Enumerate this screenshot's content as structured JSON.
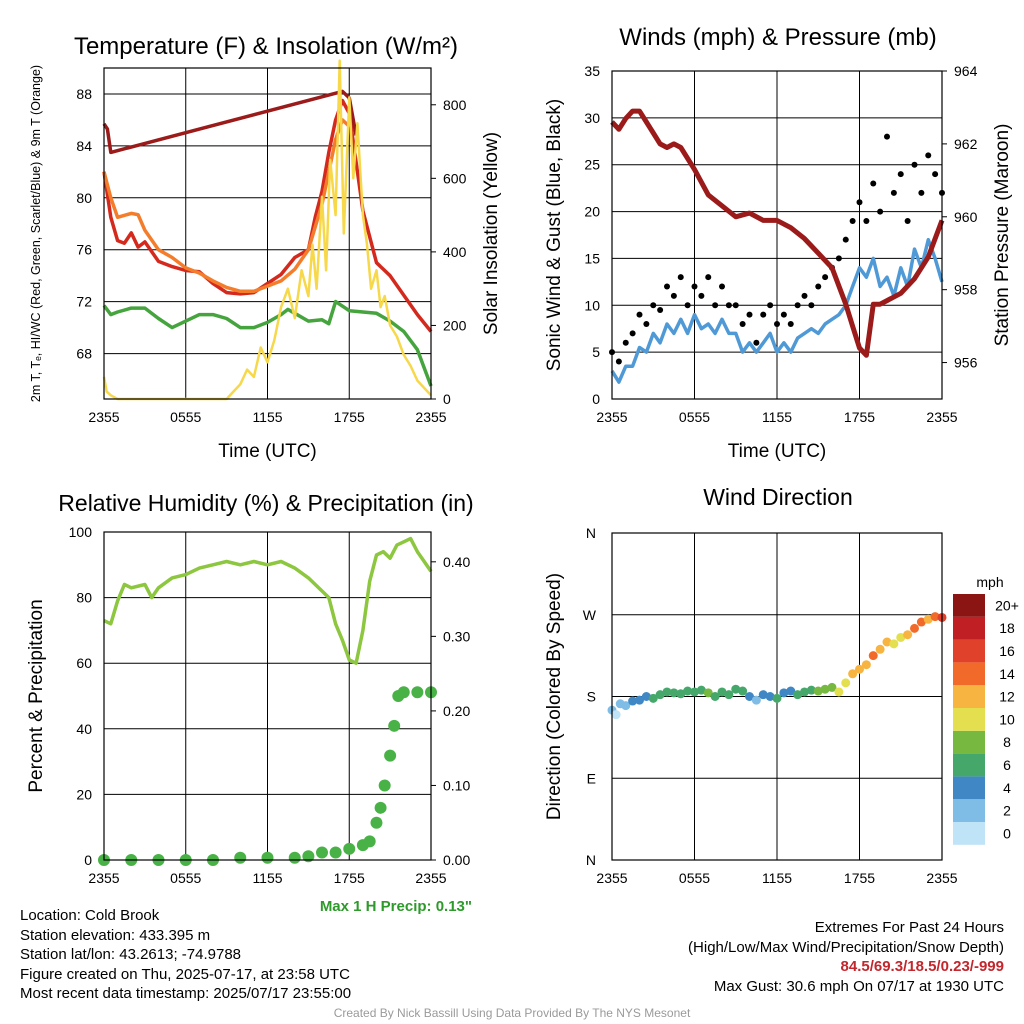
{
  "chart_data": [
    {
      "type": "line",
      "title": "Temperature (F) & Insolation (W/m²)",
      "xlabel": "Time (UTC)",
      "ylabel": "2m T, Tₑ, HI/WC (Red, Green, Scarlet/Blue) & 9m T (Orange)",
      "y2label": "Solar Insolation (Yellow)",
      "x_ticks": [
        "2355",
        "0555",
        "1155",
        "1755",
        "2355"
      ],
      "ylim": [
        64.5,
        90
      ],
      "y_ticks": [
        68,
        72,
        76,
        80,
        84,
        88
      ],
      "y2lim": [
        0,
        900
      ],
      "y2_ticks": [
        0,
        200,
        400,
        600,
        800
      ],
      "series": [
        {
          "name": "2m T",
          "color": "#d42a1e",
          "axis": "left",
          "x": [
            0,
            0.5,
            1,
            1.5,
            2,
            2.5,
            3,
            4,
            5,
            6,
            7,
            8,
            9,
            10,
            11,
            12,
            13,
            14,
            15,
            15.5,
            16,
            16.5,
            17,
            17.5,
            18,
            19,
            20,
            21,
            22,
            23,
            24
          ],
          "y": [
            82,
            78.5,
            76.7,
            76.5,
            77.3,
            76.2,
            76.6,
            75.1,
            74.7,
            74.4,
            74.3,
            73.4,
            72.7,
            72.6,
            72.7,
            73.4,
            74.1,
            75.4,
            76,
            78.5,
            80.5,
            83.5,
            86,
            87.5,
            86.5,
            79,
            75,
            74,
            72.5,
            71,
            69.7
          ]
        },
        {
          "name": "9m T",
          "color": "#f47d2c",
          "axis": "left",
          "x": [
            0,
            0.5,
            1,
            2,
            2.5,
            3,
            4,
            5,
            6,
            7,
            8,
            9,
            10,
            11,
            12,
            13,
            14,
            15,
            16,
            17,
            17.5,
            18
          ],
          "y": [
            82,
            80,
            78.5,
            78.8,
            78.7,
            77.5,
            76,
            75.4,
            74.6,
            74.2,
            73.6,
            73.1,
            72.8,
            72.8,
            73.2,
            73.6,
            74.5,
            76,
            79.5,
            84.5,
            86,
            85.5
          ]
        },
        {
          "name": "Td",
          "color": "#45a43d",
          "axis": "left",
          "x": [
            0,
            0.5,
            1,
            2,
            3,
            4,
            5,
            6,
            7,
            8,
            9,
            10,
            11,
            12,
            13,
            13.5,
            14,
            15,
            16,
            16.5,
            17,
            18,
            19,
            20,
            21,
            22,
            23,
            24
          ],
          "y": [
            71.7,
            71,
            71.2,
            71.5,
            71.5,
            70.7,
            70,
            70.5,
            71,
            71,
            70.7,
            70,
            70,
            70.4,
            71,
            71.4,
            71.1,
            70.5,
            70.6,
            70.3,
            72,
            71.3,
            71.2,
            71.1,
            70.5,
            69.7,
            68.3,
            65.5
          ]
        },
        {
          "name": "HI/WC",
          "color": "#9b1b1b",
          "axis": "left",
          "x": [
            0,
            0.25,
            0.5,
            17.5,
            18,
            18.5
          ],
          "y": [
            85.7,
            85.3,
            83.5,
            88.2,
            87.7,
            84.8
          ]
        },
        {
          "name": "Solar Insolation",
          "color": "#f6d84a",
          "axis": "right",
          "x": [
            0,
            0.2,
            0.5,
            1,
            4,
            8,
            9,
            9.5,
            10,
            10.5,
            11,
            11.5,
            12,
            12.5,
            13,
            13.5,
            14,
            14.5,
            15,
            15.3,
            15.6,
            16,
            16.3,
            16.6,
            17,
            17.3,
            17.6,
            18,
            18.3,
            18.6,
            19,
            19.3,
            19.6,
            20,
            20.3,
            20.6,
            21,
            21.5,
            22,
            22.5,
            23,
            23.5,
            24
          ],
          "y": [
            60,
            20,
            10,
            0,
            0,
            0,
            0,
            20,
            40,
            80,
            60,
            140,
            100,
            160,
            250,
            300,
            220,
            350,
            280,
            420,
            300,
            550,
            350,
            650,
            500,
            920,
            450,
            820,
            600,
            750,
            500,
            420,
            300,
            350,
            250,
            280,
            200,
            170,
            120,
            90,
            50,
            30,
            10
          ]
        }
      ]
    },
    {
      "type": "line",
      "title": "Winds (mph) & Pressure (mb)",
      "xlabel": "Time (UTC)",
      "ylabel": "Sonic Wind & Gust (Blue, Black)",
      "y2label": "Station Pressure (Maroon)",
      "x_ticks": [
        "2355",
        "0555",
        "1155",
        "1755",
        "2355"
      ],
      "ylim": [
        0,
        35
      ],
      "y_ticks": [
        0,
        5,
        10,
        15,
        20,
        25,
        30,
        35
      ],
      "y2lim": [
        955,
        964
      ],
      "y2_ticks": [
        956,
        958,
        960,
        962,
        964
      ],
      "series": [
        {
          "name": "Sonic Wind",
          "color": "#4f9ad6",
          "axis": "left",
          "x": [
            0,
            0.5,
            1,
            1.5,
            2,
            2.5,
            3,
            3.5,
            4,
            4.5,
            5,
            5.5,
            6,
            6.5,
            7,
            7.5,
            8,
            8.5,
            9,
            9.5,
            10,
            10.5,
            11,
            11.5,
            12,
            12.5,
            13,
            13.5,
            14,
            14.5,
            15,
            15.5,
            16,
            16.5,
            17,
            17.5,
            18,
            18.5,
            19,
            19.5,
            20,
            20.5,
            21,
            21.5,
            22,
            22.5,
            23,
            23.5,
            24
          ],
          "y": [
            3,
            1.8,
            3.5,
            3.5,
            5.5,
            5,
            7,
            6,
            8,
            7,
            8.5,
            7,
            9,
            7.5,
            8,
            7,
            8.5,
            7,
            7,
            5,
            6,
            5,
            6,
            7,
            5,
            6,
            5,
            6.5,
            7,
            7.5,
            7,
            8,
            8.5,
            9,
            10,
            12,
            14,
            13,
            15,
            12,
            13,
            11,
            14,
            12,
            16,
            14,
            17,
            15,
            12.5
          ]
        },
        {
          "name": "Gust",
          "color": "#000000",
          "axis": "left",
          "style": "points",
          "x": [
            0,
            0.5,
            1,
            1.5,
            2,
            2.5,
            3,
            3.5,
            4,
            4.5,
            5,
            5.5,
            6,
            6.5,
            7,
            7.5,
            8,
            8.5,
            9,
            9.5,
            10,
            10.5,
            11,
            11.5,
            12,
            12.5,
            13,
            13.5,
            14,
            14.5,
            15,
            15.5,
            16,
            16.5,
            17,
            17.5,
            18,
            18.5,
            19,
            19.5,
            20,
            20.5,
            21,
            21.5,
            22,
            22.5,
            23,
            23.5,
            24
          ],
          "y": [
            5,
            4,
            6,
            7,
            9,
            8,
            10,
            9.5,
            12,
            11,
            13,
            10,
            12,
            11,
            13,
            10,
            12,
            10,
            10,
            8,
            9,
            6,
            9,
            10,
            8,
            9,
            8,
            10,
            11,
            10,
            12,
            13,
            14,
            15,
            17,
            19,
            21,
            19,
            23,
            20,
            28,
            22,
            24,
            19,
            25,
            22,
            26,
            24,
            22
          ]
        },
        {
          "name": "Station Pressure",
          "color": "#9b1b1b",
          "axis": "right",
          "x": [
            0,
            0.5,
            1,
            1.5,
            2,
            2.5,
            3,
            3.5,
            4,
            4.5,
            5,
            6,
            7,
            8,
            9,
            10,
            11,
            12,
            13,
            14,
            15,
            16,
            17,
            17.5,
            18,
            18.5,
            19,
            19.5,
            20,
            21,
            22,
            23,
            24
          ],
          "y": [
            962.6,
            962.4,
            962.7,
            962.9,
            962.9,
            962.6,
            962.3,
            962.0,
            961.9,
            962.0,
            961.9,
            961.3,
            960.6,
            960.3,
            960.0,
            960.1,
            959.9,
            959.9,
            959.7,
            959.4,
            959.0,
            958.6,
            957.6,
            957.0,
            956.4,
            956.2,
            957.6,
            957.6,
            957.7,
            957.9,
            958.3,
            958.9,
            959.9
          ]
        }
      ]
    },
    {
      "type": "line",
      "title": "Relative Humidity (%) & Precipitation (in)",
      "ylabel": "Percent & Precipitation",
      "x_ticks": [
        "2355",
        "0555",
        "1155",
        "1755",
        "2355"
      ],
      "ylim": [
        0,
        100
      ],
      "y_ticks": [
        0,
        20,
        40,
        60,
        80,
        100
      ],
      "y2lim": [
        0,
        0.44
      ],
      "y2_ticks": [
        "0.00",
        "0.10",
        "0.20",
        "0.30",
        "0.40"
      ],
      "series": [
        {
          "name": "Relative Humidity",
          "color": "#8dc63f",
          "axis": "left",
          "x": [
            0,
            0.5,
            1,
            1.5,
            2,
            3,
            3.5,
            4,
            5,
            6,
            7,
            8,
            9,
            10,
            11,
            12,
            13,
            14,
            15,
            16,
            16.5,
            17,
            17.5,
            18,
            18.5,
            19,
            19.5,
            20,
            20.5,
            21,
            21.5,
            22,
            22.5,
            23,
            23.5,
            24
          ],
          "y": [
            73,
            72,
            79,
            84,
            83,
            84,
            80,
            83,
            86,
            87,
            89,
            90,
            91,
            90,
            91,
            90,
            91,
            89,
            86,
            82,
            80,
            72,
            67,
            61,
            60,
            70,
            85,
            93,
            94,
            92,
            96,
            97,
            98,
            94,
            91,
            88
          ]
        },
        {
          "name": "Precipitation",
          "color": "#49b246",
          "axis": "right",
          "style": "points",
          "x": [
            0,
            2,
            4,
            6,
            8,
            10,
            12,
            14,
            15,
            16,
            17,
            18,
            19,
            19.5,
            20,
            20.3,
            20.6,
            21,
            21.3,
            21.6,
            22,
            23,
            24
          ],
          "y": [
            0,
            0,
            0,
            0,
            0,
            0.003,
            0.003,
            0.003,
            0.005,
            0.01,
            0.01,
            0.015,
            0.02,
            0.025,
            0.05,
            0.07,
            0.1,
            0.14,
            0.18,
            0.22,
            0.225,
            0.225,
            0.225
          ]
        }
      ],
      "annotation": "Max 1 H Precip: 0.13\""
    },
    {
      "type": "scatter",
      "title": "Wind Direction",
      "ylabel": "Direction (Colored By Speed)",
      "x_ticks": [
        "2355",
        "0555",
        "1155",
        "1755",
        "2355"
      ],
      "y_ticks": [
        "N",
        "E",
        "S",
        "W",
        "N"
      ],
      "ylim": [
        0,
        360
      ],
      "colorbar_title": "mph",
      "colorbar_labels": [
        "0",
        "2",
        "4",
        "6",
        "8",
        "10",
        "12",
        "14",
        "16",
        "18",
        "20+"
      ],
      "colorbar_colors": [
        "#bfe3f7",
        "#7fbce6",
        "#3f88c5",
        "#45a86a",
        "#76b840",
        "#e3df4f",
        "#f7b441",
        "#f26a2a",
        "#e0412b",
        "#c01f23",
        "#8b1513"
      ],
      "series": [
        {
          "name": "Direction",
          "x": [
            0,
            0.3,
            0.6,
            1,
            1.5,
            2,
            2.5,
            3,
            3.5,
            4,
            4.5,
            5,
            5.5,
            6,
            6.5,
            7,
            7.5,
            8,
            8.5,
            9,
            9.5,
            10,
            10.5,
            11,
            11.5,
            12,
            12.5,
            13,
            13.5,
            14,
            14.5,
            15,
            15.5,
            16,
            16.5,
            17,
            17.5,
            18,
            18.5,
            19,
            19.5,
            20,
            20.5,
            21,
            21.5,
            22,
            22.5,
            23,
            23.5,
            24
          ],
          "y": [
            165,
            160,
            172,
            170,
            175,
            176,
            180,
            178,
            182,
            185,
            184,
            183,
            186,
            185,
            187,
            184,
            180,
            185,
            182,
            188,
            186,
            180,
            176,
            182,
            180,
            178,
            184,
            186,
            182,
            185,
            187,
            186,
            188,
            190,
            185,
            195,
            205,
            210,
            215,
            225,
            232,
            240,
            238,
            245,
            248,
            255,
            262,
            265,
            268,
            267
          ],
          "speed": [
            2,
            1,
            2,
            3,
            4,
            5,
            5,
            6,
            6,
            7,
            6,
            7,
            7,
            7,
            7,
            8,
            6,
            7,
            7,
            7,
            6,
            4,
            3,
            5,
            4,
            6,
            5,
            5,
            6,
            6,
            7,
            8,
            9,
            9,
            10,
            11,
            12,
            12,
            13,
            14,
            13,
            12,
            11,
            10,
            12,
            15,
            14,
            13,
            14,
            16
          ]
        }
      ]
    }
  ],
  "footer": {
    "location": "Location: Cold Brook",
    "elevation": "Station elevation: 433.395 m",
    "latlon": "Station lat/lon: 43.2613; -74.9788",
    "created": "Figure created on Thu, 2025-07-17, at 23:58 UTC",
    "recent": "Most recent data timestamp: 2025/07/17 23:55:00",
    "extremes_title": "Extremes For Past 24 Hours",
    "extremes_legend": "(High/Low/Max Wind/Precipitation/Snow Depth)",
    "extremes_values": "84.5/69.3/18.5/0.23/-999",
    "max_gust": "Max Gust: 30.6 mph On 07/17 at 1930 UTC",
    "credit": "Created By Nick Bassill Using Data Provided By The NYS Mesonet"
  }
}
